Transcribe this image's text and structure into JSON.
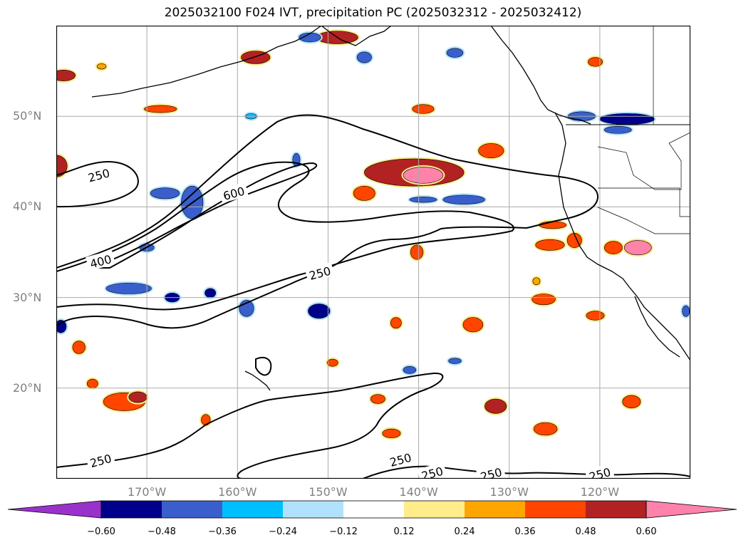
{
  "title": "2025032100 F024 IVT, precipitation PC (2025032312 - 2025032412)",
  "lat_labels": [
    {
      "text": "50°N",
      "lat": 50
    },
    {
      "text": "40°N",
      "lat": 40
    },
    {
      "text": "30°N",
      "lat": 30
    },
    {
      "text": "20°N",
      "lat": 20
    }
  ],
  "lon_labels": [
    {
      "text": "170°W",
      "lon": -170
    },
    {
      "text": "160°W",
      "lon": -160
    },
    {
      "text": "150°W",
      "lon": -150
    },
    {
      "text": "140°W",
      "lon": -140
    },
    {
      "text": "130°W",
      "lon": -130
    },
    {
      "text": "120°W",
      "lon": -120
    }
  ],
  "extent": {
    "lon_min": -180,
    "lon_max": -110,
    "lat_min": 10,
    "lat_max": 60
  },
  "gridlines": true,
  "ivt_contour_labels": [
    {
      "text": "250",
      "lon": -175.3,
      "lat": 43.5
    },
    {
      "text": "600",
      "lon": -160.4,
      "lat": 41.5
    },
    {
      "text": "400",
      "lon": -175.1,
      "lat": 34.0
    },
    {
      "text": "250",
      "lon": -150.9,
      "lat": 32.7
    },
    {
      "text": "250",
      "lon": -175.1,
      "lat": 12.0
    },
    {
      "text": "250",
      "lon": -142.0,
      "lat": 12.1
    },
    {
      "text": "250",
      "lon": -138.5,
      "lat": 10.6
    },
    {
      "text": "250",
      "lon": -132.0,
      "lat": 10.5
    },
    {
      "text": "250",
      "lon": -120.0,
      "lat": 10.5
    }
  ],
  "colorbar": {
    "colors": [
      "#9932cc",
      "#00008b",
      "#3a5fcd",
      "#00bfff",
      "#b0e2ff",
      "#ffffff",
      "#ffec8b",
      "#ffa500",
      "#ff4500",
      "#b22222",
      "#ff82ab"
    ],
    "tick_labels": [
      "−0.60",
      "−0.48",
      "−0.36",
      "−0.24",
      "−0.12",
      "0.12",
      "0.24",
      "0.36",
      "0.48",
      "0.60"
    ],
    "extend": "both"
  },
  "precip_blobs": [
    {
      "lon": -180,
      "lat": 44.5,
      "rx": 1.2,
      "ry": 1.2,
      "level": 0.48
    },
    {
      "lon": -179.2,
      "lat": 54.5,
      "rx": 1.3,
      "ry": 0.6,
      "level": 0.48
    },
    {
      "lon": -168.5,
      "lat": 50.8,
      "rx": 1.8,
      "ry": 0.4,
      "level": 0.36
    },
    {
      "lon": -158,
      "lat": 56.5,
      "rx": 1.6,
      "ry": 0.7,
      "level": 0.48
    },
    {
      "lon": -149,
      "lat": 58.7,
      "rx": 2.3,
      "ry": 0.7,
      "level": 0.48
    },
    {
      "lon": -140.5,
      "lat": 43.8,
      "rx": 5.5,
      "ry": 1.5,
      "level": 0.48
    },
    {
      "lon": -139.5,
      "lat": 43.5,
      "rx": 2.2,
      "ry": 0.9,
      "level": 0.6
    },
    {
      "lon": -146,
      "lat": 41.5,
      "rx": 1.2,
      "ry": 0.8,
      "level": 0.36
    },
    {
      "lon": -132,
      "lat": 46.2,
      "rx": 1.4,
      "ry": 0.8,
      "level": 0.36
    },
    {
      "lon": -139.5,
      "lat": 50.8,
      "rx": 1.2,
      "ry": 0.5,
      "level": 0.36
    },
    {
      "lon": -125.2,
      "lat": 38.0,
      "rx": 1.5,
      "ry": 0.4,
      "level": 0.36
    },
    {
      "lon": -125.5,
      "lat": 35.8,
      "rx": 1.6,
      "ry": 0.6,
      "level": 0.36
    },
    {
      "lon": -122.8,
      "lat": 36.3,
      "rx": 0.8,
      "ry": 0.8,
      "level": 0.36
    },
    {
      "lon": -118.5,
      "lat": 35.5,
      "rx": 1.0,
      "ry": 0.7,
      "level": 0.36
    },
    {
      "lon": -115.8,
      "lat": 35.5,
      "rx": 1.5,
      "ry": 0.8,
      "level": 0.6
    },
    {
      "lon": -140.2,
      "lat": 35.0,
      "rx": 0.7,
      "ry": 0.8,
      "level": 0.36
    },
    {
      "lon": -126.2,
      "lat": 29.8,
      "rx": 1.3,
      "ry": 0.6,
      "level": 0.36
    },
    {
      "lon": -120.5,
      "lat": 28.0,
      "rx": 1.0,
      "ry": 0.5,
      "level": 0.36
    },
    {
      "lon": -134,
      "lat": 27.0,
      "rx": 1.1,
      "ry": 0.8,
      "level": 0.36
    },
    {
      "lon": -142.5,
      "lat": 27.2,
      "rx": 0.6,
      "ry": 0.6,
      "level": 0.36
    },
    {
      "lon": -177.5,
      "lat": 24.5,
      "rx": 0.7,
      "ry": 0.7,
      "level": 0.36
    },
    {
      "lon": -172.5,
      "lat": 18.5,
      "rx": 2.3,
      "ry": 1.0,
      "level": 0.36
    },
    {
      "lon": -171.0,
      "lat": 19.0,
      "rx": 1.0,
      "ry": 0.6,
      "level": 0.48
    },
    {
      "lon": -131.5,
      "lat": 18.0,
      "rx": 1.2,
      "ry": 0.8,
      "level": 0.48
    },
    {
      "lon": -126,
      "lat": 15.5,
      "rx": 1.3,
      "ry": 0.7,
      "level": 0.36
    },
    {
      "lon": -116.5,
      "lat": 18.5,
      "rx": 1.0,
      "ry": 0.7,
      "level": 0.36
    },
    {
      "lon": -144.5,
      "lat": 18.8,
      "rx": 0.8,
      "ry": 0.5,
      "level": 0.36
    },
    {
      "lon": -143,
      "lat": 15.0,
      "rx": 1.0,
      "ry": 0.5,
      "level": 0.36
    },
    {
      "lon": -149.5,
      "lat": 22.8,
      "rx": 0.6,
      "ry": 0.4,
      "level": 0.36
    },
    {
      "lon": -176,
      "lat": 20.5,
      "rx": 0.6,
      "ry": 0.5,
      "level": 0.36
    },
    {
      "lon": -163.5,
      "lat": 16.5,
      "rx": 0.5,
      "ry": 0.6,
      "level": 0.36
    },
    {
      "lon": -175,
      "lat": 55.5,
      "rx": 0.5,
      "ry": 0.3,
      "level": 0.24
    },
    {
      "lon": -120.5,
      "lat": 56.0,
      "rx": 0.8,
      "ry": 0.5,
      "level": 0.36
    },
    {
      "lon": -127,
      "lat": 31.8,
      "rx": 0.4,
      "ry": 0.4,
      "level": 0.24
    }
  ],
  "neg_blobs": [
    {
      "lon": -165,
      "lat": 40.5,
      "rx": 1.2,
      "ry": 1.8,
      "level": -0.36
    },
    {
      "lon": -168,
      "lat": 41.5,
      "rx": 1.6,
      "ry": 0.6,
      "level": -0.36
    },
    {
      "lon": -170,
      "lat": 35.5,
      "rx": 0.8,
      "ry": 0.4,
      "level": -0.36
    },
    {
      "lon": -172,
      "lat": 31.0,
      "rx": 2.5,
      "ry": 0.6,
      "level": -0.36
    },
    {
      "lon": -167.2,
      "lat": 30.0,
      "rx": 0.8,
      "ry": 0.5,
      "level": -0.48
    },
    {
      "lon": -163,
      "lat": 30.5,
      "rx": 0.6,
      "ry": 0.5,
      "level": -0.48
    },
    {
      "lon": -159,
      "lat": 28.8,
      "rx": 0.8,
      "ry": 0.9,
      "level": -0.36
    },
    {
      "lon": -151,
      "lat": 28.5,
      "rx": 1.2,
      "ry": 0.8,
      "level": -0.48
    },
    {
      "lon": -135,
      "lat": 40.8,
      "rx": 2.3,
      "ry": 0.5,
      "level": -0.36
    },
    {
      "lon": -139.5,
      "lat": 40.8,
      "rx": 1.5,
      "ry": 0.3,
      "level": -0.36
    },
    {
      "lon": -136,
      "lat": 57.0,
      "rx": 0.9,
      "ry": 0.5,
      "level": -0.36
    },
    {
      "lon": -152,
      "lat": 58.7,
      "rx": 1.2,
      "ry": 0.5,
      "level": -0.36
    },
    {
      "lon": -117,
      "lat": 49.7,
      "rx": 3.0,
      "ry": 0.6,
      "level": -0.48
    },
    {
      "lon": -122,
      "lat": 50.0,
      "rx": 1.5,
      "ry": 0.5,
      "level": -0.36
    },
    {
      "lon": -118,
      "lat": 48.5,
      "rx": 1.5,
      "ry": 0.4,
      "level": -0.36
    },
    {
      "lon": -179.5,
      "lat": 26.8,
      "rx": 0.6,
      "ry": 0.7,
      "level": -0.48
    },
    {
      "lon": -110.5,
      "lat": 28.5,
      "rx": 0.4,
      "ry": 0.6,
      "level": -0.36
    },
    {
      "lon": -146,
      "lat": 56.5,
      "rx": 0.8,
      "ry": 0.6,
      "level": -0.36
    },
    {
      "lon": -141,
      "lat": 22.0,
      "rx": 0.7,
      "ry": 0.4,
      "level": -0.36
    },
    {
      "lon": -136,
      "lat": 23.0,
      "rx": 0.7,
      "ry": 0.3,
      "level": -0.36
    },
    {
      "lon": -153.5,
      "lat": 45.2,
      "rx": 0.4,
      "ry": 0.7,
      "level": -0.36
    },
    {
      "lon": -158.5,
      "lat": 50.0,
      "rx": 0.6,
      "ry": 0.3,
      "level": -0.24
    }
  ],
  "color_levels": {
    "pos": {
      "0.24": "#ffa500",
      "0.36": "#ff4500",
      "0.48": "#b22222",
      "0.6": "#ff82ab"
    },
    "neg": {
      "-0.24": "#00bfff",
      "-0.36": "#3a5fcd",
      "-0.48": "#00008b"
    }
  }
}
